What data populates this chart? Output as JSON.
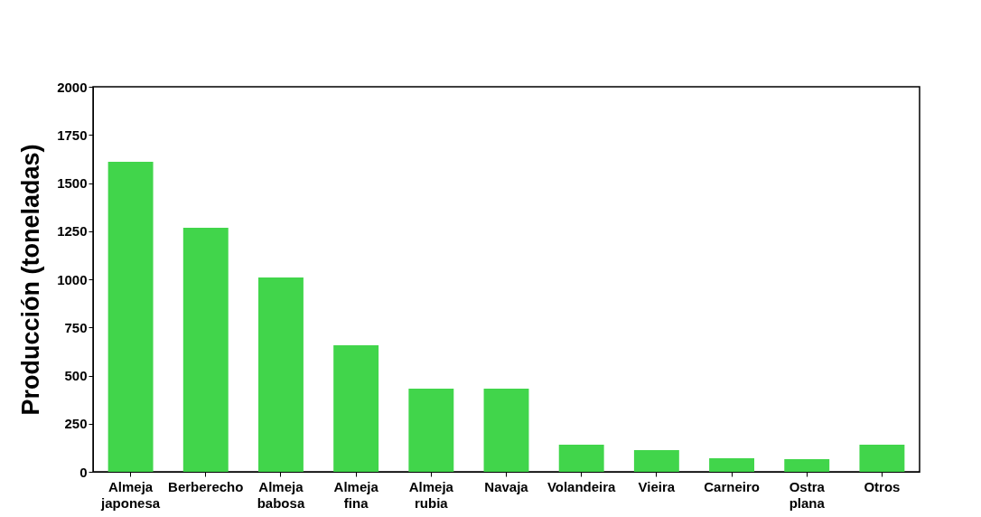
{
  "chart_data": {
    "type": "bar",
    "ylabel": "Producción (toneladas)",
    "categories": [
      "Almeja japonesa",
      "Berberecho",
      "Almeja babosa",
      "Almeja fina",
      "Almeja rubia",
      "Navaja",
      "Volandeira",
      "Vieira",
      "Carneiro",
      "Ostra plana",
      "Otros"
    ],
    "values": [
      1610,
      1268,
      1009,
      657,
      432,
      432,
      141,
      113,
      70,
      66,
      141
    ],
    "color": "#41d54b",
    "ylim": [
      0,
      2000
    ],
    "yticks": [
      0,
      250,
      500,
      750,
      1000,
      1250,
      1500,
      1750,
      2000
    ],
    "grid": false
  }
}
